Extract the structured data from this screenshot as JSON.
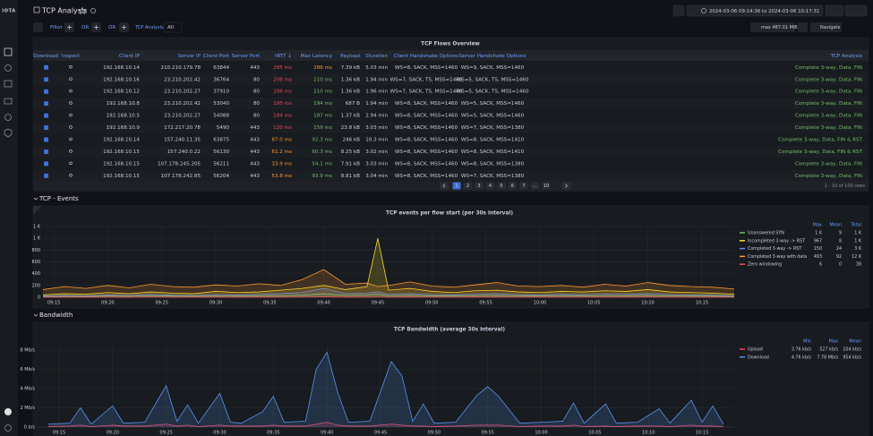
{
  "header": {
    "logo": "IOTA",
    "title": "TCP Analysis",
    "time_range": "2024-03-06 09:14:36 to 2024-03-06 10:17:31"
  },
  "toolbar": {
    "filter": "Filter",
    "operators": [
      "OR",
      "OR"
    ],
    "variable_label": "TCP Analysis",
    "variable_value": "All",
    "download_size": "max 487.01 MiB",
    "navigate": "Navigate"
  },
  "table": {
    "title": "TCP Flows Overview",
    "columns": [
      "Download",
      "Inspect",
      "Client IP",
      "Server IP",
      "Client Port",
      "Server Port",
      "tRTT ↓",
      "Max Latency",
      "Payload",
      "Duration",
      "Client Handshake Options",
      "Server Handshake Options",
      "TCP Analysis"
    ],
    "rows": [
      [
        "192.168.10.14",
        "210.210.179.78",
        "63844",
        "443",
        "285 ms",
        "286 ms",
        "7.39 kB",
        "5.03 min",
        "WS=8, SACK, MSS=1460",
        "WS=9, SACK, MSS=1460",
        "Complete 3-way, Data, FIN"
      ],
      [
        "192.168.10.16",
        "23.210.202.42",
        "36764",
        "80",
        "208 ms",
        "210 ms",
        "1.36 kB",
        "1.94 min",
        "WS=7, SACK, TS, MSS=1460",
        "WS=5, SACK, TS, MSS=1460",
        "Complete 3-way, Data, FIN"
      ],
      [
        "192.168.10.12",
        "23.210.202.27",
        "37910",
        "80",
        "208 ms",
        "210 ms",
        "1.36 kB",
        "1.96 min",
        "WS=7, SACK, TS, MSS=1460",
        "WS=5, SACK, TS, MSS=1460",
        "Complete 3-way, Data, FIN"
      ],
      [
        "192.168.10.8",
        "23.210.202.42",
        "53040",
        "80",
        "195 ms",
        "194 ms",
        "687 B",
        "1.94 min",
        "WS=8, SACK, MSS=1460",
        "WS=5, SACK, MSS=1460",
        "Complete 3-way, Data, FIN"
      ],
      [
        "192.168.10.5",
        "23.210.202.27",
        "54088",
        "80",
        "184 ms",
        "187 ms",
        "1.37 kB",
        "2.94 min",
        "WS=8, SACK, MSS=1460",
        "WS=5, SACK, MSS=1460",
        "Complete 3-way, Data, FIN"
      ],
      [
        "192.168.10.9",
        "172.217.20.78",
        "5490",
        "443",
        "120 ms",
        "159 ms",
        "23.8 kB",
        "3.03 min",
        "WS=8, SACK, MSS=1460",
        "WS=7, SACK, MSS=1380",
        "Complete 3-way, Data, FIN"
      ],
      [
        "192.168.10.14",
        "157.240.11.35",
        "63875",
        "443",
        "87.0 ms",
        "92.3 ms",
        "246 kB",
        "10.3 min",
        "WS=8, SACK, MSS=1460",
        "WS=8, SACK, MSS=1410",
        "Complete 3-way, Data, FIN & RST"
      ],
      [
        "192.168.10.15",
        "157.240.0.22",
        "56130",
        "443",
        "61.2 ms",
        "60.3 ms",
        "8.25 kB",
        "3.02 min",
        "WS=8, SACK, MSS=1460",
        "WS=8, SACK, MSS=1410",
        "Complete 3-way, Data, FIN & RST"
      ],
      [
        "192.168.10.15",
        "107.178.245.205",
        "56211",
        "443",
        "33.9 ms",
        "54.1 ms",
        "7.91 kB",
        "3.03 min",
        "WS=8, SACK, MSS=1460",
        "WS=8, SACK, MSS=1380",
        "Complete 3-way, Data, FIN"
      ],
      [
        "192.168.10.15",
        "107.178.242.85",
        "56204",
        "443",
        "53.8 ms",
        "93.9 ms",
        "8.81 kB",
        "3.04 min",
        "WS=8, SACK, MSS=1460",
        "WS=7, SACK, MSS=1380",
        "Complete 3-way, Data, FIN"
      ]
    ],
    "pagination": {
      "pages": [
        "1",
        "2",
        "3",
        "4",
        "5",
        "6",
        "7",
        "…",
        "10"
      ],
      "row_count": "1 - 10 of 100 rows"
    }
  },
  "sections": [
    "TCP - Events",
    "Bandwidth"
  ],
  "chart_data": [
    {
      "type": "line",
      "title": "TCP events per flow start (per 30s interval)",
      "x": [
        "09:14",
        "09:16",
        "09:18",
        "09:20",
        "09:22",
        "09:24",
        "09:26",
        "09:28",
        "09:30",
        "09:32",
        "09:34",
        "09:36",
        "09:38",
        "09:40",
        "09:42",
        "09:44",
        "09:45",
        "09:46",
        "09:48",
        "09:50",
        "09:52",
        "09:54",
        "09:56",
        "09:58",
        "10:00",
        "10:02",
        "10:04",
        "10:06",
        "10:08",
        "10:10",
        "10:12",
        "10:14",
        "10:16",
        "10:18"
      ],
      "xlim": [
        "09:14",
        "10:18"
      ],
      "xticks": [
        "09:15",
        "09:20",
        "09:25",
        "09:30",
        "09:35",
        "09:40",
        "09:45",
        "09:50",
        "09:55",
        "10:00",
        "10:05",
        "10:10",
        "10:15"
      ],
      "ylim": [
        0,
        1200
      ],
      "yticks": [
        0,
        200,
        400,
        600,
        800,
        {
          "value": 1000,
          "label": "1 K"
        },
        {
          "value": 1200,
          "label": "1 K"
        }
      ],
      "grid": true,
      "legend": "right",
      "legend_stats": {
        "columns": [
          "Max",
          "Mean",
          "Total"
        ],
        "rows": [
          [
            "1 K",
            "9",
            "1 K"
          ],
          [
            "967",
            "8",
            "1 K"
          ],
          [
            "150",
            "24",
            "3 K"
          ],
          [
            "493",
            "92",
            "12 K"
          ],
          [
            "6",
            "0",
            "38"
          ]
        ]
      },
      "series": [
        {
          "name": "Unanswered SYN",
          "color": "#73bf69",
          "values": [
            10,
            15,
            12,
            20,
            15,
            25,
            18,
            15,
            20,
            18,
            22,
            25,
            35,
            60,
            30,
            40,
            50,
            25,
            30,
            22,
            20,
            25,
            28,
            22,
            20,
            25,
            22,
            25,
            24,
            28,
            22,
            20,
            18,
            12
          ]
        },
        {
          "name": "Incompleted 3-way -> RST",
          "color": "#fade2a",
          "values": [
            40,
            60,
            50,
            80,
            60,
            90,
            70,
            60,
            100,
            80,
            90,
            120,
            150,
            200,
            130,
            180,
            1000,
            120,
            150,
            100,
            80,
            110,
            120,
            90,
            80,
            100,
            90,
            110,
            100,
            130,
            90,
            80,
            70,
            50
          ]
        },
        {
          "name": "Completed 3-way -> RST",
          "color": "#5794f2",
          "values": [
            20,
            30,
            25,
            40,
            30,
            50,
            35,
            30,
            45,
            40,
            50,
            60,
            80,
            150,
            60,
            70,
            90,
            50,
            60,
            45,
            40,
            50,
            60,
            45,
            40,
            50,
            45,
            55,
            50,
            60,
            45,
            40,
            35,
            25
          ]
        },
        {
          "name": "Completed 3-way with data",
          "color": "#ff9830",
          "values": [
            130,
            180,
            150,
            200,
            160,
            220,
            180,
            170,
            210,
            190,
            230,
            200,
            300,
            470,
            220,
            240,
            180,
            200,
            260,
            190,
            170,
            210,
            250,
            190,
            180,
            200,
            170,
            220,
            190,
            250,
            200,
            180,
            170,
            140
          ]
        },
        {
          "name": "Zero windowing",
          "color": "#f2495c",
          "values": [
            0,
            0,
            1,
            0,
            0,
            2,
            0,
            1,
            0,
            0,
            1,
            0,
            2,
            6,
            1,
            0,
            2,
            0,
            1,
            0,
            0,
            1,
            0,
            0,
            1,
            0,
            0,
            1,
            0,
            2,
            0,
            0,
            1,
            0
          ]
        }
      ]
    },
    {
      "type": "line",
      "title": "TCP Bandwidth (average 30s interval)",
      "x": [
        "09:14",
        "09:16",
        "09:17",
        "09:18",
        "09:20",
        "09:21",
        "09:23",
        "09:25",
        "09:26",
        "09:27",
        "09:28",
        "09:30",
        "09:31",
        "09:32",
        "09:34",
        "09:35",
        "09:36",
        "09:38",
        "09:39",
        "09:40",
        "09:41",
        "09:42",
        "09:44",
        "09:46",
        "09:47",
        "09:48",
        "09:49",
        "09:50",
        "09:52",
        "09:54",
        "09:55",
        "09:56",
        "09:58",
        "10:00",
        "10:02",
        "10:03",
        "10:04",
        "10:06",
        "10:07",
        "10:09",
        "10:11",
        "10:12",
        "10:14",
        "10:15",
        "10:16",
        "10:17"
      ],
      "xlim": [
        "09:13",
        "10:18"
      ],
      "xticks": [
        "09:15",
        "09:20",
        "09:25",
        "09:30",
        "09:35",
        "09:40",
        "09:45",
        "09:50",
        "09:55",
        "10:00",
        "10:05",
        "10:10",
        "10:15"
      ],
      "ylim": [
        0,
        8.5
      ],
      "yticks": [
        {
          "value": 0,
          "label": "0 b/s"
        },
        {
          "value": 2,
          "label": "2 Mb/s"
        },
        {
          "value": 4,
          "label": "4 Mb/s"
        },
        {
          "value": 6,
          "label": "6 Mb/s"
        },
        {
          "value": 8,
          "label": "8 Mb/s"
        }
      ],
      "grid": true,
      "legend": "right",
      "legend_stats": {
        "columns": [
          "Min",
          "Max",
          "Mean"
        ],
        "rows": [
          [
            "3.76 kb/s",
            "527 kb/s",
            "104 kb/s"
          ],
          [
            "4.76 kb/s",
            "7.78 Mb/s",
            "954 kb/s"
          ]
        ]
      },
      "series": [
        {
          "name": "Upload",
          "color": "#f2495c",
          "values": [
            0.05,
            0.1,
            0.2,
            0.05,
            0.2,
            0.1,
            0.1,
            0.3,
            0.1,
            0.2,
            0.05,
            0.2,
            0.1,
            0.1,
            0.1,
            0.2,
            0.1,
            0.1,
            0.3,
            0.5,
            0.2,
            0.1,
            0.1,
            0.3,
            0.2,
            0.1,
            0.1,
            0.05,
            0.1,
            0.2,
            0.2,
            0.2,
            0.05,
            0.1,
            0.1,
            0.2,
            0.05,
            0.1,
            0.05,
            0.1,
            0.1,
            0.05,
            0.2,
            0.1,
            0.1,
            0.05
          ]
        },
        {
          "name": "Download",
          "color": "#5794f2",
          "values": [
            0.3,
            0.4,
            2.0,
            0.3,
            2.2,
            0.4,
            0.5,
            4.3,
            0.6,
            2.3,
            0.4,
            3.5,
            0.5,
            0.4,
            1.6,
            3.2,
            0.5,
            0.6,
            6.0,
            7.78,
            3.6,
            0.5,
            0.6,
            6.8,
            5.3,
            0.6,
            2.4,
            0.4,
            0.5,
            3.3,
            4.2,
            3.2,
            0.4,
            0.5,
            0.6,
            2.5,
            0.4,
            2.4,
            0.4,
            0.5,
            1.9,
            0.4,
            2.8,
            0.5,
            2.2,
            0.3
          ]
        }
      ]
    }
  ]
}
